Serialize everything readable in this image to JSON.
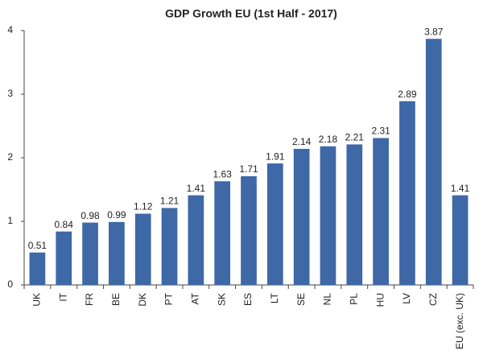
{
  "chart_data": {
    "type": "bar",
    "title": "GDP Growth EU (1st Half - 2017)",
    "categories": [
      "UK",
      "IT",
      "FR",
      "BE",
      "DK",
      "PT",
      "AT",
      "SK",
      "ES",
      "LT",
      "SE",
      "NL",
      "PL",
      "HU",
      "LV",
      "CZ",
      "EU (exc. UK)"
    ],
    "values": [
      0.51,
      0.84,
      0.98,
      0.99,
      1.12,
      1.21,
      1.41,
      1.63,
      1.71,
      1.91,
      2.14,
      2.18,
      2.21,
      2.31,
      2.89,
      3.87,
      1.41
    ],
    "color": "#3e68a6",
    "ylim": [
      0,
      4
    ],
    "yticks": [
      0,
      1,
      2,
      3,
      4
    ],
    "grid": false
  }
}
